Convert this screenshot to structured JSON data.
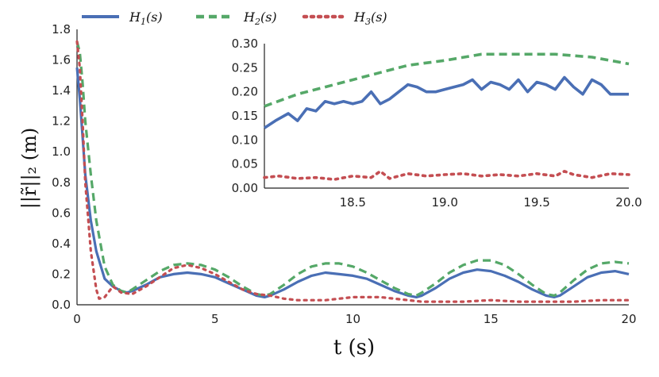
{
  "chart_data": [
    {
      "type": "line",
      "xlabel": "t (s)",
      "ylabel": "||r̃||₂ (m)",
      "xlim": [
        0,
        20
      ],
      "ylim": [
        0,
        1.8
      ],
      "xticks": [
        "0",
        "5",
        "10",
        "15",
        "20"
      ],
      "yticks": [
        "0.0",
        "0.2",
        "0.4",
        "0.6",
        "0.8",
        "1.0",
        "1.2",
        "1.4",
        "1.6",
        "1.8"
      ],
      "grid": false,
      "legend_position": "top",
      "series": [
        {
          "name": "H1(s)",
          "color": "#4a6fb5",
          "style": "solid",
          "x": [
            0,
            0.1,
            0.2,
            0.3,
            0.5,
            0.7,
            1.0,
            1.3,
            1.6,
            1.8,
            2.0,
            2.5,
            3.0,
            3.5,
            4.0,
            4.5,
            5.0,
            5.5,
            6.0,
            6.5,
            6.8,
            7.0,
            7.5,
            8.0,
            8.5,
            9.0,
            9.5,
            10.0,
            10.5,
            11.0,
            11.5,
            12.0,
            12.3,
            12.5,
            13.0,
            13.5,
            14.0,
            14.5,
            15.0,
            15.5,
            16.0,
            16.5,
            17.0,
            17.3,
            17.5,
            18.0,
            18.5,
            19.0,
            19.5,
            20.0
          ],
          "y": [
            1.55,
            1.35,
            1.1,
            0.85,
            0.55,
            0.35,
            0.17,
            0.12,
            0.09,
            0.08,
            0.09,
            0.13,
            0.18,
            0.2,
            0.21,
            0.2,
            0.18,
            0.14,
            0.1,
            0.06,
            0.05,
            0.06,
            0.1,
            0.15,
            0.19,
            0.21,
            0.2,
            0.19,
            0.17,
            0.13,
            0.09,
            0.06,
            0.05,
            0.06,
            0.11,
            0.17,
            0.21,
            0.23,
            0.22,
            0.19,
            0.15,
            0.1,
            0.06,
            0.05,
            0.06,
            0.12,
            0.18,
            0.21,
            0.22,
            0.2
          ]
        },
        {
          "name": "H2(s)",
          "color": "#55a868",
          "style": "dashed",
          "x": [
            0,
            0.1,
            0.2,
            0.3,
            0.5,
            0.7,
            1.0,
            1.3,
            1.6,
            1.8,
            2.0,
            2.5,
            3.0,
            3.5,
            4.0,
            4.5,
            5.0,
            5.5,
            6.0,
            6.5,
            6.8,
            7.0,
            7.5,
            8.0,
            8.5,
            9.0,
            9.5,
            10.0,
            10.5,
            11.0,
            11.5,
            12.0,
            12.3,
            12.5,
            13.0,
            13.5,
            14.0,
            14.5,
            15.0,
            15.5,
            16.0,
            16.5,
            17.0,
            17.3,
            17.5,
            18.0,
            18.5,
            19.0,
            19.5,
            20.0
          ],
          "y": [
            1.72,
            1.65,
            1.45,
            1.2,
            0.85,
            0.55,
            0.25,
            0.13,
            0.09,
            0.08,
            0.1,
            0.16,
            0.22,
            0.26,
            0.27,
            0.26,
            0.23,
            0.18,
            0.12,
            0.07,
            0.06,
            0.07,
            0.13,
            0.2,
            0.25,
            0.27,
            0.27,
            0.25,
            0.21,
            0.16,
            0.11,
            0.07,
            0.06,
            0.08,
            0.14,
            0.21,
            0.26,
            0.29,
            0.29,
            0.26,
            0.2,
            0.13,
            0.07,
            0.06,
            0.08,
            0.16,
            0.23,
            0.27,
            0.28,
            0.27
          ]
        },
        {
          "name": "H3(s)",
          "color": "#c44e52",
          "style": "dotted",
          "x": [
            0,
            0.1,
            0.2,
            0.3,
            0.5,
            0.7,
            0.8,
            1.0,
            1.3,
            1.6,
            2.0,
            2.5,
            3.0,
            3.5,
            4.0,
            4.5,
            5.0,
            5.5,
            6.0,
            6.5,
            7.0,
            7.5,
            8.0,
            9.0,
            10.0,
            11.0,
            11.5,
            12.0,
            12.5,
            13.0,
            14.0,
            15.0,
            16.0,
            17.0,
            17.5,
            18.0,
            19.0,
            20.0
          ],
          "y": [
            1.72,
            1.55,
            1.2,
            0.8,
            0.35,
            0.1,
            0.04,
            0.05,
            0.12,
            0.08,
            0.07,
            0.12,
            0.18,
            0.24,
            0.26,
            0.24,
            0.2,
            0.15,
            0.1,
            0.07,
            0.06,
            0.04,
            0.03,
            0.03,
            0.05,
            0.05,
            0.04,
            0.03,
            0.02,
            0.02,
            0.02,
            0.03,
            0.02,
            0.02,
            0.02,
            0.02,
            0.03,
            0.03
          ]
        }
      ]
    },
    {
      "type": "line",
      "xlim": [
        18.02,
        20.0
      ],
      "ylim": [
        0,
        0.3
      ],
      "xticks": [
        "18.5",
        "19.0",
        "19.5",
        "20.0"
      ],
      "yticks": [
        "0.00",
        "0.05",
        "0.10",
        "0.15",
        "0.20",
        "0.25",
        "0.30"
      ],
      "grid": false,
      "series": [
        {
          "name": "H1(s)",
          "color": "#4a6fb5",
          "style": "solid",
          "x": [
            18.02,
            18.08,
            18.15,
            18.2,
            18.25,
            18.3,
            18.35,
            18.4,
            18.45,
            18.5,
            18.55,
            18.6,
            18.65,
            18.7,
            18.75,
            18.8,
            18.85,
            18.9,
            18.95,
            19.0,
            19.05,
            19.1,
            19.15,
            19.2,
            19.25,
            19.3,
            19.35,
            19.4,
            19.45,
            19.5,
            19.55,
            19.6,
            19.65,
            19.7,
            19.75,
            19.8,
            19.85,
            19.9,
            19.95,
            20.0
          ],
          "y": [
            0.125,
            0.14,
            0.155,
            0.14,
            0.165,
            0.16,
            0.18,
            0.175,
            0.18,
            0.175,
            0.18,
            0.2,
            0.175,
            0.185,
            0.2,
            0.215,
            0.21,
            0.2,
            0.2,
            0.205,
            0.21,
            0.215,
            0.225,
            0.205,
            0.22,
            0.215,
            0.205,
            0.225,
            0.2,
            0.22,
            0.215,
            0.205,
            0.23,
            0.21,
            0.195,
            0.225,
            0.215,
            0.195,
            0.195,
            0.195
          ]
        },
        {
          "name": "H2(s)",
          "color": "#55a868",
          "style": "dashed",
          "x": [
            18.02,
            18.2,
            18.4,
            18.6,
            18.8,
            19.0,
            19.2,
            19.4,
            19.6,
            19.8,
            20.0
          ],
          "y": [
            0.17,
            0.195,
            0.215,
            0.235,
            0.255,
            0.265,
            0.278,
            0.278,
            0.278,
            0.272,
            0.258
          ]
        },
        {
          "name": "H3(s)",
          "color": "#c44e52",
          "style": "dotted",
          "x": [
            18.02,
            18.1,
            18.2,
            18.3,
            18.4,
            18.5,
            18.6,
            18.65,
            18.7,
            18.8,
            18.9,
            19.0,
            19.1,
            19.2,
            19.3,
            19.4,
            19.5,
            19.6,
            19.65,
            19.7,
            19.8,
            19.9,
            20.0
          ],
          "y": [
            0.022,
            0.025,
            0.02,
            0.022,
            0.018,
            0.025,
            0.022,
            0.035,
            0.02,
            0.03,
            0.025,
            0.028,
            0.03,
            0.025,
            0.028,
            0.025,
            0.03,
            0.025,
            0.035,
            0.028,
            0.022,
            0.03,
            0.028
          ]
        }
      ]
    }
  ]
}
